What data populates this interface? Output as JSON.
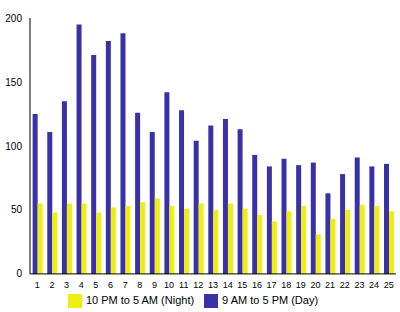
{
  "chart_data": {
    "type": "bar",
    "categories": [
      "1",
      "2",
      "3",
      "4",
      "5",
      "6",
      "7",
      "8",
      "9",
      "10",
      "11",
      "12",
      "13",
      "14",
      "15",
      "16",
      "17",
      "18",
      "19",
      "20",
      "21",
      "22",
      "23",
      "24",
      "25"
    ],
    "series": [
      {
        "name": "9 AM to 5 PM (Day)",
        "color": "#3a30a8",
        "values": [
          125,
          111,
          135,
          195,
          171,
          182,
          188,
          126,
          111,
          142,
          128,
          104,
          116,
          121,
          113,
          93,
          84,
          90,
          85,
          87,
          63,
          78,
          91,
          84,
          86
        ]
      },
      {
        "name": "10 PM to 5 AM (Night)",
        "color": "#eeee10",
        "values": [
          55,
          48,
          55,
          55,
          48,
          52,
          53,
          56,
          59,
          53,
          51,
          55,
          50,
          55,
          51,
          46,
          41,
          49,
          53,
          31,
          43,
          50,
          54,
          53,
          49
        ]
      }
    ],
    "ylim": [
      0,
      200
    ],
    "yticks": [
      0,
      50,
      100,
      150,
      200
    ],
    "grid": false,
    "legend": "bottom"
  }
}
